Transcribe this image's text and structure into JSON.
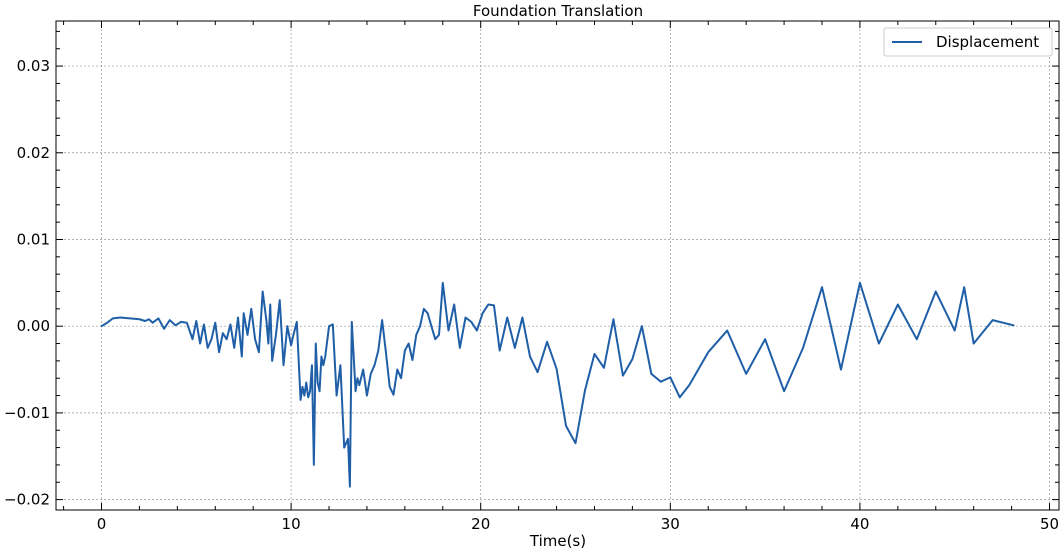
{
  "chart_data": {
    "type": "line",
    "title": "Foundation Translation",
    "xlabel": "Time(s)",
    "ylabel": "",
    "xlim": [
      -2.4,
      50.5
    ],
    "ylim": [
      -0.0212,
      0.0352
    ],
    "xticks": [
      0,
      10,
      20,
      30,
      40,
      50
    ],
    "xtick_labels": [
      "0",
      "10",
      "20",
      "30",
      "40",
      "50"
    ],
    "yticks": [
      -0.02,
      -0.01,
      0.0,
      0.01,
      0.02,
      0.03
    ],
    "ytick_labels": [
      "−0.02",
      "−0.01",
      "0.00",
      "0.01",
      "0.02",
      "0.03"
    ],
    "grid": true,
    "legend": {
      "placement": "top-right",
      "entries": [
        "Displacement"
      ]
    },
    "series": [
      {
        "name": "Displacement",
        "color": "#1f5fa8",
        "x": [
          0.0,
          0.3,
          0.6,
          1.0,
          1.5,
          2.0,
          2.3,
          2.5,
          2.7,
          3.0,
          3.3,
          3.6,
          3.9,
          4.2,
          4.5,
          4.8,
          5.0,
          5.2,
          5.4,
          5.6,
          5.8,
          6.0,
          6.2,
          6.4,
          6.6,
          6.8,
          7.0,
          7.2,
          7.4,
          7.5,
          7.7,
          7.9,
          8.1,
          8.3,
          8.5,
          8.7,
          8.8,
          8.9,
          9.0,
          9.2,
          9.4,
          9.6,
          9.8,
          10.0,
          10.1,
          10.3,
          10.5,
          10.6,
          10.7,
          10.8,
          10.9,
          11.0,
          11.1,
          11.2,
          11.3,
          11.4,
          11.5,
          11.6,
          11.7,
          11.8,
          12.0,
          12.2,
          12.4,
          12.6,
          12.8,
          13.0,
          13.1,
          13.2,
          13.4,
          13.5,
          13.6,
          13.8,
          14.0,
          14.2,
          14.4,
          14.6,
          14.8,
          15.0,
          15.2,
          15.4,
          15.6,
          15.8,
          16.0,
          16.2,
          16.4,
          16.6,
          16.8,
          17.0,
          17.2,
          17.4,
          17.6,
          17.8,
          18.0,
          18.3,
          18.6,
          18.9,
          19.2,
          19.5,
          19.8,
          20.1,
          20.4,
          20.7,
          21.0,
          21.4,
          21.8,
          22.2,
          22.6,
          23.0,
          23.5,
          24.0,
          24.5,
          25.0,
          25.5,
          26.0,
          26.5,
          27.0,
          27.5,
          28.0,
          28.5,
          29.0,
          29.5,
          30.0,
          30.5,
          31.0,
          32.0,
          33.0,
          34.0,
          35.0,
          36.0,
          37.0,
          38.0,
          39.0,
          40.0,
          41.0,
          42.0,
          43.0,
          44.0,
          45.0,
          45.5,
          46.0,
          47.0,
          48.1
        ],
        "y": [
          0.0,
          0.0004,
          0.0009,
          0.001,
          0.0009,
          0.0008,
          0.0006,
          0.0008,
          0.0004,
          0.0009,
          -0.0003,
          0.0007,
          0.0001,
          0.0005,
          0.0004,
          -0.0015,
          0.0006,
          -0.002,
          0.0002,
          -0.0025,
          -0.0015,
          0.0004,
          -0.003,
          -0.0008,
          -0.0015,
          0.0002,
          -0.0025,
          0.001,
          -0.0035,
          0.0015,
          -0.001,
          0.002,
          -0.0015,
          -0.003,
          0.004,
          0.0006,
          -0.002,
          0.0025,
          -0.004,
          -0.001,
          0.003,
          -0.0045,
          0.0,
          -0.0022,
          -0.0012,
          0.0005,
          -0.0085,
          -0.007,
          -0.008,
          -0.0065,
          -0.0082,
          -0.0075,
          -0.0045,
          -0.016,
          -0.002,
          -0.0065,
          -0.0075,
          -0.0035,
          -0.0045,
          -0.0035,
          0.0,
          0.0002,
          -0.008,
          -0.0045,
          -0.014,
          -0.013,
          -0.0185,
          0.0005,
          -0.0075,
          -0.006,
          -0.0068,
          -0.005,
          -0.008,
          -0.0055,
          -0.0045,
          -0.0028,
          0.0007,
          -0.003,
          -0.007,
          -0.0079,
          -0.005,
          -0.006,
          -0.0028,
          -0.002,
          -0.0039,
          -0.001,
          0.0,
          0.002,
          0.0015,
          0.0,
          -0.0015,
          -0.001,
          0.005,
          -0.0005,
          0.0025,
          -0.0025,
          0.001,
          0.0005,
          -0.0005,
          0.0015,
          0.0025,
          0.0024,
          -0.0028,
          0.001,
          -0.0025,
          0.001,
          -0.0035,
          -0.0053,
          -0.0018,
          -0.0049,
          -0.0115,
          -0.0135,
          -0.0074,
          -0.0032,
          -0.0048,
          0.0008,
          -0.0057,
          -0.0038,
          0.0,
          -0.0055,
          -0.0064,
          -0.0059,
          -0.0082,
          -0.0068,
          -0.003,
          -0.0005,
          -0.0055,
          -0.0015,
          -0.0075,
          -0.0025,
          0.0045,
          -0.005,
          0.005,
          -0.002,
          0.0025,
          -0.0015,
          0.004,
          -0.0005,
          0.0045,
          -0.002,
          0.0007,
          0.0001
        ]
      }
    ]
  }
}
